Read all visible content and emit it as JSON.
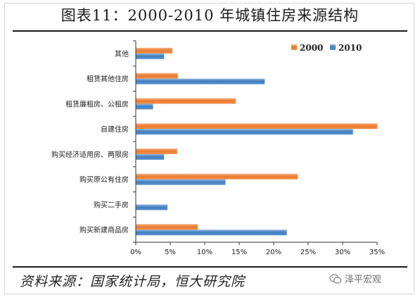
{
  "title": "图表11：2000-2010 年城镇住房来源结构",
  "source": "资料来源：国家统计局，恒大研究院",
  "watermark": "泽平宏观",
  "colors": {
    "s2000": "#ec7a2f",
    "s2010": "#3f7fc1",
    "axis": "#333333"
  },
  "chart_data": {
    "type": "bar",
    "orientation": "horizontal",
    "categories": [
      "其他",
      "租赁其他住房",
      "租赁廉租房、公租房",
      "自建住房",
      "购买经济适用房、两限房",
      "购买原公有住房",
      "购买二手房",
      "购买新建商品房"
    ],
    "series": [
      {
        "name": "2000",
        "color": "#ec7a2f",
        "values": [
          5.3,
          6.1,
          14.5,
          35.0,
          6.0,
          23.5,
          0,
          9.0
        ]
      },
      {
        "name": "2010",
        "color": "#3f7fc1",
        "values": [
          4.1,
          18.7,
          2.5,
          31.5,
          4.1,
          13.0,
          4.6,
          21.9
        ]
      }
    ],
    "xlim": [
      0,
      35
    ],
    "xticks": [
      "0%",
      "5%",
      "10%",
      "15%",
      "20%",
      "25%",
      "30%",
      "35%"
    ],
    "legend": "top-right"
  }
}
